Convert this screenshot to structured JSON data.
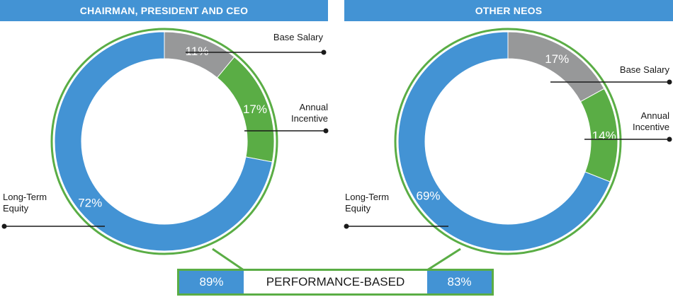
{
  "colors": {
    "header": "#4393d4",
    "base_salary": "#979899",
    "annual_incentive": "#5aad45",
    "long_term_equity": "#4393d4",
    "outline": "#5aad45",
    "callout": "#1a1a1a"
  },
  "headers": {
    "left": "CHAIRMAN, PRESIDENT AND CEO",
    "right": "OTHER NEOS"
  },
  "chart_data": [
    {
      "type": "pie",
      "title": "CHAIRMAN, PRESIDENT AND CEO",
      "categories": [
        "Base Salary",
        "Annual Incentive",
        "Long-Term Equity"
      ],
      "values": [
        11,
        17,
        72
      ],
      "labels": [
        "11%",
        "17%",
        "72%"
      ],
      "callouts": {
        "base_salary": [
          "Base Salary"
        ],
        "annual_incentive": [
          "Annual",
          "Incentive"
        ],
        "long_term_equity": [
          "Long-Term",
          "Equity"
        ]
      },
      "performance_based": "89%"
    },
    {
      "type": "pie",
      "title": "OTHER NEOS",
      "categories": [
        "Base Salary",
        "Annual Incentive",
        "Long-Term Equity"
      ],
      "values": [
        17,
        14,
        69
      ],
      "labels": [
        "17%",
        "14%",
        "69%"
      ],
      "callouts": {
        "base_salary": [
          "Base Salary"
        ],
        "annual_incentive": [
          "Annual",
          "Incentive"
        ],
        "long_term_equity": [
          "Long-Term",
          "Equity"
        ]
      },
      "performance_based": "83%"
    }
  ],
  "performance": {
    "label": "PERFORMANCE-BASED",
    "left_value": "89%",
    "right_value": "83%"
  }
}
